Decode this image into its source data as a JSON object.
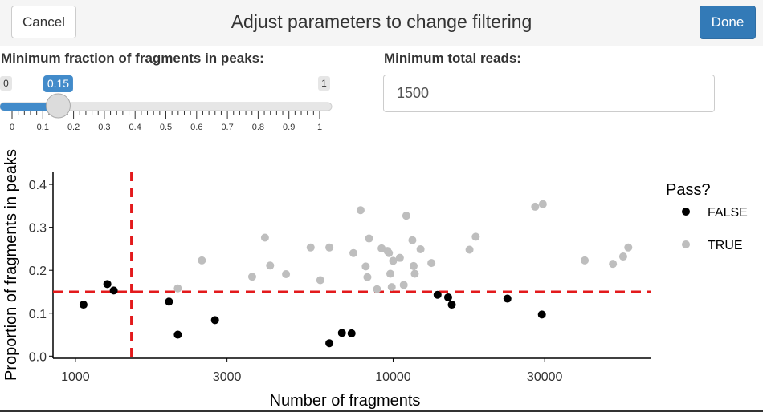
{
  "header": {
    "cancel_label": "Cancel",
    "title": "Adjust parameters to change filtering",
    "done_label": "Done"
  },
  "slider": {
    "label": "Minimum fraction of fragments in peaks:",
    "min_label": "0",
    "max_label": "1",
    "value": 0.15,
    "value_label": "0.15",
    "ticks": [
      "0",
      "0.1",
      "0.2",
      "0.3",
      "0.4",
      "0.5",
      "0.6",
      "0.7",
      "0.8",
      "0.9",
      "1"
    ]
  },
  "reads_input": {
    "label": "Minimum total reads:",
    "value": "1500"
  },
  "colors": {
    "accent": "#428bca",
    "done": "#337ab7",
    "false_point": "#000000",
    "true_point": "#bebebe",
    "threshold_line": "#e31a1c"
  },
  "chart_data": {
    "type": "scatter",
    "title": "",
    "xlabel": "Number of fragments",
    "ylabel": "Proportion of fragments in peaks",
    "x_scale": "log10",
    "xlim": [
      850,
      65000
    ],
    "ylim": [
      -0.005,
      0.43
    ],
    "x_ticks": [
      1000,
      3000,
      10000,
      30000
    ],
    "x_tick_labels": [
      "1000",
      "3000",
      "10000",
      "30000"
    ],
    "y_ticks": [
      0.0,
      0.1,
      0.2,
      0.3,
      0.4
    ],
    "y_tick_labels": [
      "0.0",
      "0.1",
      "0.2",
      "0.3",
      "0.4"
    ],
    "threshold_x": 1500,
    "threshold_y": 0.15,
    "legend": {
      "title": "Pass?",
      "placement": "right",
      "entries": [
        {
          "label": "FALSE",
          "color": "#000000"
        },
        {
          "label": "TRUE",
          "color": "#bebebe"
        }
      ]
    },
    "series": [
      {
        "name": "FALSE",
        "color": "#000000",
        "points": [
          [
            1060,
            0.12
          ],
          [
            1260,
            0.168
          ],
          [
            1320,
            0.153
          ],
          [
            1970,
            0.127
          ],
          [
            2100,
            0.05
          ],
          [
            2750,
            0.084
          ],
          [
            6300,
            0.03
          ],
          [
            6900,
            0.054
          ],
          [
            7400,
            0.053
          ],
          [
            13800,
            0.143
          ],
          [
            14900,
            0.137
          ],
          [
            15300,
            0.12
          ],
          [
            22900,
            0.134
          ],
          [
            29400,
            0.097
          ]
        ]
      },
      {
        "name": "TRUE",
        "color": "#bebebe",
        "points": [
          [
            2100,
            0.158
          ],
          [
            2500,
            0.223
          ],
          [
            3600,
            0.185
          ],
          [
            3950,
            0.276
          ],
          [
            4100,
            0.211
          ],
          [
            4600,
            0.191
          ],
          [
            5500,
            0.253
          ],
          [
            5900,
            0.177
          ],
          [
            6300,
            0.253
          ],
          [
            7500,
            0.24
          ],
          [
            7900,
            0.34
          ],
          [
            8200,
            0.209
          ],
          [
            8300,
            0.184
          ],
          [
            8400,
            0.274
          ],
          [
            8900,
            0.156
          ],
          [
            9200,
            0.251
          ],
          [
            9600,
            0.245
          ],
          [
            9700,
            0.24
          ],
          [
            9800,
            0.192
          ],
          [
            9900,
            0.161
          ],
          [
            10000,
            0.222
          ],
          [
            10500,
            0.229
          ],
          [
            10800,
            0.166
          ],
          [
            11000,
            0.327
          ],
          [
            11500,
            0.27
          ],
          [
            11600,
            0.21
          ],
          [
            11700,
            0.192
          ],
          [
            12200,
            0.249
          ],
          [
            13200,
            0.217
          ],
          [
            17400,
            0.248
          ],
          [
            18200,
            0.278
          ],
          [
            28000,
            0.348
          ],
          [
            29600,
            0.354
          ],
          [
            40100,
            0.223
          ],
          [
            49200,
            0.215
          ],
          [
            53000,
            0.232
          ],
          [
            55000,
            0.253
          ]
        ]
      }
    ]
  }
}
